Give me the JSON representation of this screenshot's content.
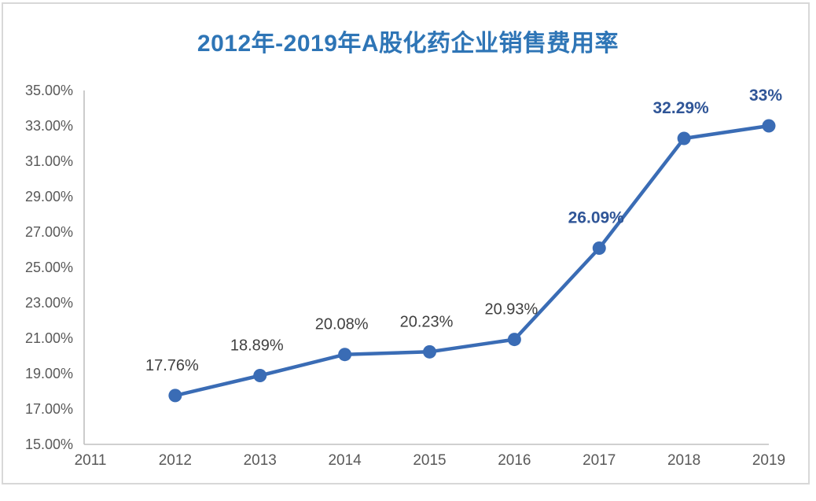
{
  "page": {
    "background": "#ffffff",
    "frame_border_color": "#d8d8d8"
  },
  "chart_data": {
    "type": "line",
    "title": "2012年-2019年A股化药企业销售费用率",
    "xlabel": "",
    "ylabel": "",
    "x": [
      2012,
      2013,
      2014,
      2015,
      2016,
      2017,
      2018,
      2019
    ],
    "values": [
      17.76,
      18.89,
      20.08,
      20.23,
      20.93,
      26.09,
      32.29,
      33
    ],
    "point_labels": [
      "17.76%",
      "18.89%",
      "20.08%",
      "20.23%",
      "20.93%",
      "26.09%",
      "32.29%",
      "33%"
    ],
    "point_label_emphasis": [
      false,
      false,
      false,
      false,
      false,
      true,
      true,
      true
    ],
    "x_tick_labels": [
      "2011",
      "2012",
      "2013",
      "2014",
      "2015",
      "2016",
      "2017",
      "2018",
      "2019"
    ],
    "x_tick_values": [
      2011,
      2012,
      2013,
      2014,
      2015,
      2016,
      2017,
      2018,
      2019
    ],
    "y_tick_labels": [
      "15.00%",
      "17.00%",
      "19.00%",
      "21.00%",
      "23.00%",
      "25.00%",
      "27.00%",
      "29.00%",
      "31.00%",
      "33.00%",
      "35.00%"
    ],
    "y_tick_values": [
      15,
      17,
      19,
      21,
      23,
      25,
      27,
      29,
      31,
      33,
      35
    ],
    "xlim": [
      2011,
      2019
    ],
    "ylim": [
      15,
      35
    ],
    "grid": false,
    "legend": "none",
    "colors": {
      "line": "#3a6cb5",
      "marker": "#3a6cb5",
      "axis_line": "#c0c0c0",
      "axis_text": "#595959",
      "data_label": "#404040",
      "data_label_emphasis": "#2f5597",
      "title": "#2e75b6"
    }
  }
}
